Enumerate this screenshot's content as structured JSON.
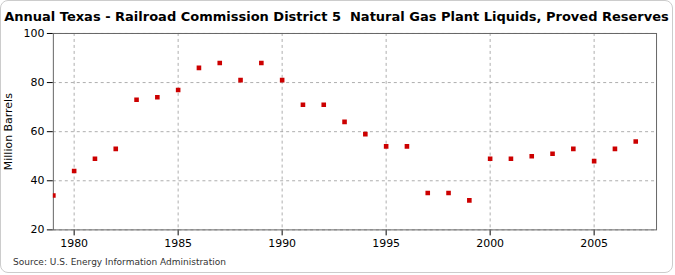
{
  "chart_data": {
    "type": "scatter",
    "title": "Annual Texas - Railroad Commission District 5  Natural Gas Plant Liquids, Proved Reserves",
    "y_label": "Million Barrels",
    "source": "Source: U.S. Energy Information Administration",
    "x": [
      1979,
      1980,
      1981,
      1982,
      1983,
      1984,
      1985,
      1986,
      1987,
      1988,
      1989,
      1990,
      1991,
      1992,
      1993,
      1994,
      1995,
      1996,
      1997,
      1998,
      1999,
      2000,
      2001,
      2002,
      2003,
      2004,
      2005,
      2006,
      2007
    ],
    "values": [
      34,
      44,
      49,
      53,
      73,
      74,
      77,
      86,
      88,
      81,
      88,
      81,
      71,
      71,
      64,
      59,
      54,
      54,
      35,
      35,
      32,
      49,
      49,
      50,
      51,
      53,
      48,
      53,
      56
    ],
    "color": "#cc0000",
    "marker": "square",
    "xlim": [
      1979,
      2008
    ],
    "xticks": [
      1980,
      1985,
      1990,
      1995,
      2000,
      2005
    ],
    "ylim": [
      20,
      100
    ],
    "yticks": [
      20,
      40,
      60,
      80,
      100
    ],
    "grid": true
  }
}
